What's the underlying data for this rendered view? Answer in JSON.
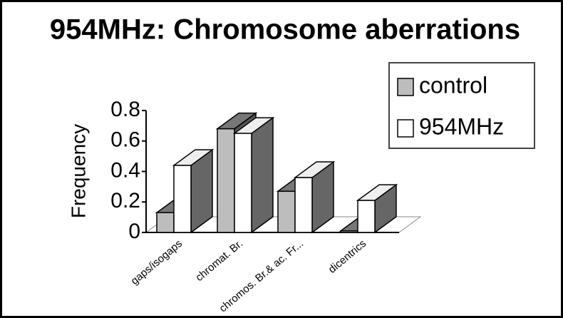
{
  "chart_data": {
    "type": "bar3d",
    "title": "954MHz: Chromosome aberrations",
    "y_label": "Frequency",
    "categories": [
      "gaps/isogaps",
      "chromat. Br.",
      "chromos. Br.& ac. Fr...",
      "dicentrics"
    ],
    "series": [
      {
        "name": "control",
        "color": "#bdbdbd",
        "values": [
          0.13,
          0.68,
          0.27,
          0.01
        ]
      },
      {
        "name": "954MHz",
        "color": "#ffffff",
        "values": [
          0.44,
          0.65,
          0.36,
          0.21
        ]
      }
    ],
    "ylim": [
      0,
      0.8
    ],
    "yticks": [
      0,
      0.2,
      0.4,
      0.6,
      0.8
    ],
    "legend": "top-right"
  }
}
